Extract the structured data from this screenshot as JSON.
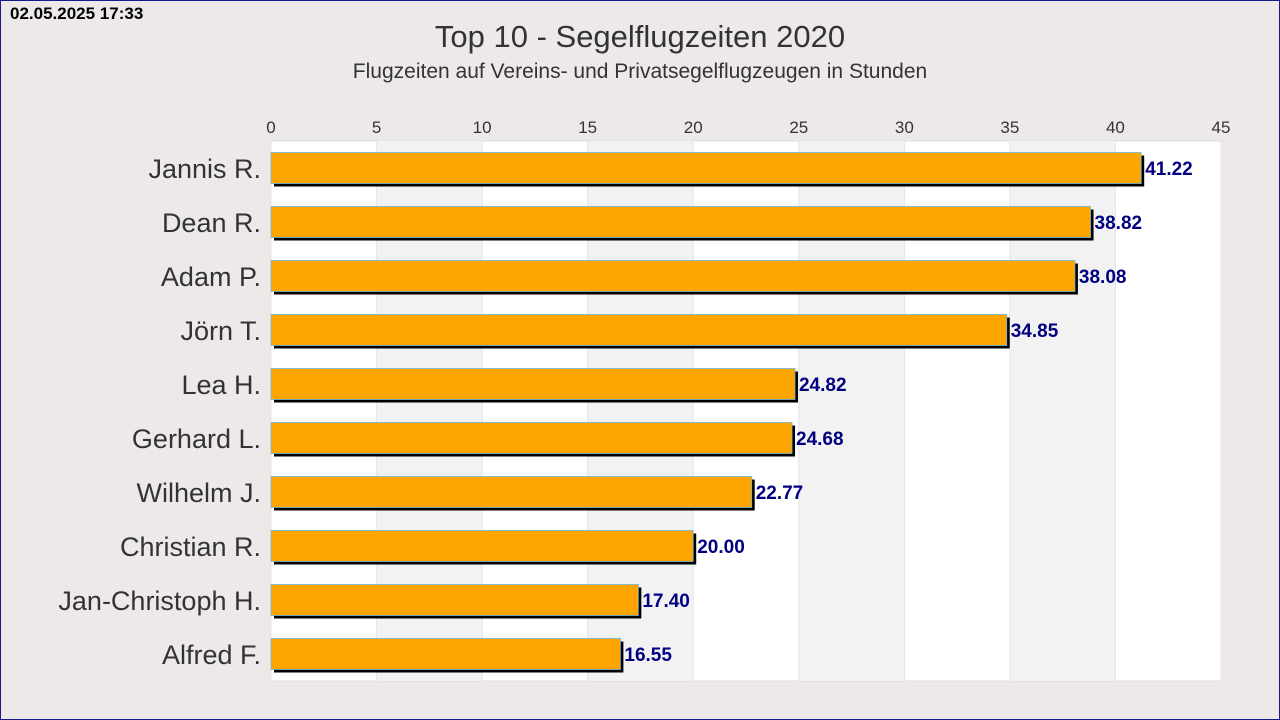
{
  "timestamp": "02.05.2025 17:33",
  "chart_data": {
    "type": "bar",
    "orientation": "horizontal",
    "title": "Top 10 - Segelflugzeiten 2020",
    "subtitle": "Flugzeiten auf Vereins- und Privatsegelflugzeugen in Stunden",
    "categories": [
      "Jannis R.",
      "Dean R.",
      "Adam P.",
      "Jörn T.",
      "Lea H.",
      "Gerhard L.",
      "Wilhelm J.",
      "Christian R.",
      "Jan-Christoph H.",
      "Alfred F."
    ],
    "values": [
      41.22,
      38.82,
      38.08,
      34.85,
      24.82,
      24.68,
      22.77,
      20.0,
      17.4,
      16.55
    ],
    "value_labels": [
      "41.22",
      "38.82",
      "38.08",
      "34.85",
      "24.82",
      "24.68",
      "22.77",
      "20.00",
      "17.40",
      "16.55"
    ],
    "xticks": [
      "0",
      "5",
      "10",
      "15",
      "20",
      "25",
      "30",
      "35",
      "40",
      "45"
    ],
    "xlim": [
      0,
      45
    ],
    "x_axis_position": "top",
    "grid": true,
    "bar_color": "#ffa500",
    "value_label_color": "#000080"
  }
}
